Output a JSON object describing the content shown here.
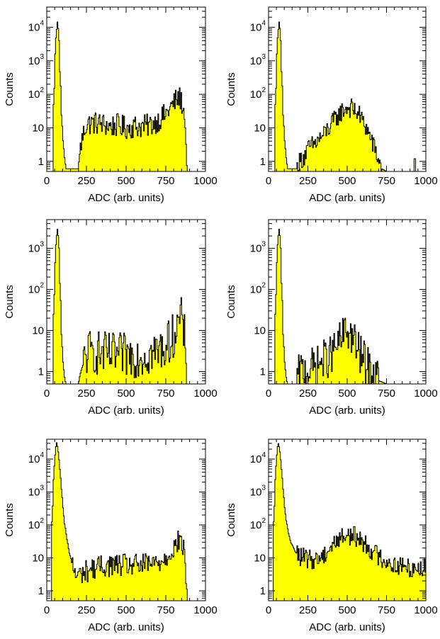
{
  "chart_data": [
    {
      "type": "histogram",
      "panel": "top-left",
      "scale_y": "log",
      "xlabel": "ADC (arb. units)",
      "ylabel": "Counts",
      "xlim": [
        0,
        1000
      ],
      "ylim": [
        0.5,
        40000
      ],
      "xticks": [
        "0",
        "250",
        "500",
        "750",
        "1000"
      ],
      "yticks": [
        {
          "value": 1,
          "label": "1"
        },
        {
          "value": 10,
          "label": "10"
        },
        {
          "value": 100,
          "base": "10",
          "exp": "2"
        },
        {
          "value": 1000,
          "base": "10",
          "exp": "3"
        },
        {
          "value": 10000,
          "base": "10",
          "exp": "4"
        }
      ],
      "fill_color": "#ffff00",
      "line_color": "#000000",
      "points": [
        [
          40,
          0
        ],
        [
          50,
          200
        ],
        [
          55,
          3000
        ],
        [
          62,
          8000
        ],
        [
          68,
          15000
        ],
        [
          75,
          6000
        ],
        [
          82,
          500
        ],
        [
          90,
          30
        ],
        [
          100,
          5
        ],
        [
          110,
          1.5
        ],
        [
          120,
          0.6
        ],
        [
          150,
          0.6
        ],
        [
          200,
          0.6
        ],
        [
          210,
          2
        ],
        [
          220,
          4
        ],
        [
          230,
          6
        ],
        [
          250,
          13
        ],
        [
          300,
          14
        ],
        [
          350,
          13
        ],
        [
          400,
          11
        ],
        [
          450,
          12
        ],
        [
          500,
          10
        ],
        [
          550,
          11
        ],
        [
          600,
          11
        ],
        [
          650,
          12
        ],
        [
          700,
          16
        ],
        [
          750,
          25
        ],
        [
          790,
          45
        ],
        [
          820,
          70
        ],
        [
          835,
          80
        ],
        [
          850,
          60
        ],
        [
          865,
          25
        ],
        [
          875,
          5
        ],
        [
          880,
          1.5
        ],
        [
          885,
          0
        ]
      ],
      "noise": 0.35,
      "noise_from": 210,
      "noise_to": 870
    },
    {
      "type": "histogram",
      "panel": "top-right",
      "scale_y": "log",
      "xlabel": "ADC (arb. units)",
      "ylabel": "Counts",
      "xlim": [
        0,
        1000
      ],
      "ylim": [
        0.5,
        40000
      ],
      "xticks": [
        "0",
        "250",
        "500",
        "750",
        "1000"
      ],
      "yticks": [
        {
          "value": 1,
          "label": "1"
        },
        {
          "value": 10,
          "label": "10"
        },
        {
          "value": 100,
          "base": "10",
          "exp": "2"
        },
        {
          "value": 1000,
          "base": "10",
          "exp": "3"
        },
        {
          "value": 10000,
          "base": "10",
          "exp": "4"
        }
      ],
      "fill_color": "#ffff00",
      "line_color": "#000000",
      "points": [
        [
          40,
          0
        ],
        [
          50,
          200
        ],
        [
          55,
          3000
        ],
        [
          62,
          8000
        ],
        [
          68,
          15000
        ],
        [
          75,
          6000
        ],
        [
          82,
          500
        ],
        [
          90,
          30
        ],
        [
          100,
          5
        ],
        [
          110,
          1.5
        ],
        [
          120,
          0.6
        ],
        [
          150,
          0.6
        ],
        [
          180,
          0.6
        ],
        [
          200,
          1
        ],
        [
          230,
          1.5
        ],
        [
          260,
          2.5
        ],
        [
          300,
          3.5
        ],
        [
          350,
          6
        ],
        [
          400,
          12
        ],
        [
          450,
          25
        ],
        [
          480,
          35
        ],
        [
          500,
          40
        ],
        [
          530,
          38
        ],
        [
          560,
          30
        ],
        [
          600,
          15
        ],
        [
          640,
          6
        ],
        [
          670,
          2.5
        ],
        [
          700,
          1
        ],
        [
          720,
          0.6
        ],
        [
          750,
          0.5
        ]
      ],
      "noise": 0.3,
      "noise_from": 180,
      "noise_to": 720,
      "stray_bins": [
        930
      ]
    },
    {
      "type": "histogram",
      "panel": "middle-left",
      "scale_y": "log",
      "xlabel": "ADC (arb. units)",
      "ylabel": "Counts",
      "xlim": [
        0,
        1000
      ],
      "ylim": [
        0.5,
        5000
      ],
      "xticks": [
        "0",
        "250",
        "500",
        "750",
        "1000"
      ],
      "yticks": [
        {
          "value": 1,
          "label": "1"
        },
        {
          "value": 10,
          "label": "10"
        },
        {
          "value": 100,
          "base": "10",
          "exp": "2"
        },
        {
          "value": 1000,
          "base": "10",
          "exp": "3"
        }
      ],
      "fill_color": "#ffff00",
      "line_color": "#000000",
      "points": [
        [
          40,
          0
        ],
        [
          50,
          100
        ],
        [
          55,
          800
        ],
        [
          62,
          2000
        ],
        [
          68,
          3000
        ],
        [
          75,
          1500
        ],
        [
          82,
          150
        ],
        [
          90,
          10
        ],
        [
          100,
          2
        ],
        [
          110,
          0.8
        ],
        [
          120,
          0.5
        ],
        [
          200,
          0.5
        ],
        [
          230,
          1.5
        ],
        [
          260,
          3
        ],
        [
          300,
          3
        ],
        [
          400,
          2.5
        ],
        [
          500,
          2.5
        ],
        [
          600,
          2.5
        ],
        [
          700,
          3
        ],
        [
          760,
          4.5
        ],
        [
          800,
          8
        ],
        [
          830,
          15
        ],
        [
          845,
          20
        ],
        [
          860,
          12
        ],
        [
          872,
          4
        ],
        [
          880,
          0.5
        ]
      ],
      "noise": 0.55,
      "noise_from": 230,
      "noise_to": 870
    },
    {
      "type": "histogram",
      "panel": "middle-right",
      "scale_y": "log",
      "xlabel": "ADC (arb. units)",
      "ylabel": "Counts",
      "xlim": [
        0,
        1000
      ],
      "ylim": [
        0.5,
        5000
      ],
      "xticks": [
        "0",
        "250",
        "500",
        "750",
        "1000"
      ],
      "yticks": [
        {
          "value": 1,
          "label": "1"
        },
        {
          "value": 10,
          "label": "10"
        },
        {
          "value": 100,
          "base": "10",
          "exp": "2"
        },
        {
          "value": 1000,
          "base": "10",
          "exp": "3"
        }
      ],
      "fill_color": "#ffff00",
      "line_color": "#000000",
      "points": [
        [
          40,
          0
        ],
        [
          50,
          100
        ],
        [
          55,
          800
        ],
        [
          62,
          2000
        ],
        [
          68,
          3000
        ],
        [
          75,
          1500
        ],
        [
          82,
          150
        ],
        [
          90,
          10
        ],
        [
          100,
          2
        ],
        [
          110,
          0.8
        ],
        [
          120,
          0.5
        ],
        [
          180,
          0.5
        ],
        [
          200,
          1
        ],
        [
          300,
          1.3
        ],
        [
          400,
          2.5
        ],
        [
          450,
          5
        ],
        [
          480,
          8
        ],
        [
          500,
          10
        ],
        [
          530,
          7
        ],
        [
          570,
          3
        ],
        [
          620,
          1.5
        ],
        [
          650,
          1
        ],
        [
          700,
          0.6
        ],
        [
          750,
          0.5
        ]
      ],
      "noise": 0.5,
      "noise_from": 180,
      "noise_to": 700
    },
    {
      "type": "histogram",
      "panel": "bottom-left",
      "scale_y": "log",
      "xlabel": "ADC (arb. units)",
      "ylabel": "Counts",
      "xlim": [
        0,
        1000
      ],
      "ylim": [
        0.5,
        40000
      ],
      "xticks": [
        "0",
        "250",
        "500",
        "750",
        "1000"
      ],
      "yticks": [
        {
          "value": 1,
          "label": "1"
        },
        {
          "value": 10,
          "label": "10"
        },
        {
          "value": 100,
          "base": "10",
          "exp": "2"
        },
        {
          "value": 1000,
          "base": "10",
          "exp": "3"
        },
        {
          "value": 10000,
          "base": "10",
          "exp": "4"
        }
      ],
      "fill_color": "#ffff00",
      "line_color": "#000000",
      "points": [
        [
          30,
          0
        ],
        [
          40,
          500
        ],
        [
          50,
          8000
        ],
        [
          58,
          25000
        ],
        [
          63,
          32000
        ],
        [
          70,
          20000
        ],
        [
          80,
          6000
        ],
        [
          90,
          1500
        ],
        [
          100,
          400
        ],
        [
          110,
          120
        ],
        [
          125,
          40
        ],
        [
          140,
          15
        ],
        [
          160,
          6
        ],
        [
          180,
          3
        ],
        [
          200,
          3
        ],
        [
          250,
          4
        ],
        [
          300,
          5
        ],
        [
          400,
          6
        ],
        [
          500,
          6
        ],
        [
          600,
          6
        ],
        [
          700,
          7
        ],
        [
          750,
          10
        ],
        [
          800,
          20
        ],
        [
          840,
          35
        ],
        [
          855,
          25
        ],
        [
          870,
          8
        ],
        [
          880,
          1.5
        ],
        [
          890,
          0
        ]
      ],
      "noise": 0.35,
      "noise_from": 160,
      "noise_to": 880
    },
    {
      "type": "histogram",
      "panel": "bottom-right",
      "scale_y": "log",
      "xlabel": "ADC (arb. units)",
      "ylabel": "Counts",
      "xlim": [
        0,
        1000
      ],
      "ylim": [
        0.5,
        40000
      ],
      "xticks": [
        "0",
        "250",
        "500",
        "750",
        "1000"
      ],
      "yticks": [
        {
          "value": 1,
          "label": "1"
        },
        {
          "value": 10,
          "label": "10"
        },
        {
          "value": 100,
          "base": "10",
          "exp": "2"
        },
        {
          "value": 1000,
          "base": "10",
          "exp": "3"
        },
        {
          "value": 10000,
          "base": "10",
          "exp": "4"
        }
      ],
      "fill_color": "#ffff00",
      "line_color": "#000000",
      "points": [
        [
          30,
          0
        ],
        [
          40,
          500
        ],
        [
          50,
          8000
        ],
        [
          58,
          25000
        ],
        [
          63,
          30000
        ],
        [
          70,
          20000
        ],
        [
          80,
          6000
        ],
        [
          90,
          1500
        ],
        [
          100,
          400
        ],
        [
          110,
          150
        ],
        [
          125,
          60
        ],
        [
          140,
          30
        ],
        [
          170,
          15
        ],
        [
          200,
          11
        ],
        [
          250,
          9
        ],
        [
          300,
          9
        ],
        [
          350,
          12
        ],
        [
          400,
          22
        ],
        [
          450,
          40
        ],
        [
          500,
          50
        ],
        [
          550,
          45
        ],
        [
          600,
          30
        ],
        [
          650,
          18
        ],
        [
          700,
          11
        ],
        [
          750,
          8
        ],
        [
          800,
          6
        ],
        [
          900,
          5
        ],
        [
          1000,
          5
        ]
      ],
      "noise": 0.3,
      "noise_from": 180,
      "noise_to": 1000
    }
  ]
}
